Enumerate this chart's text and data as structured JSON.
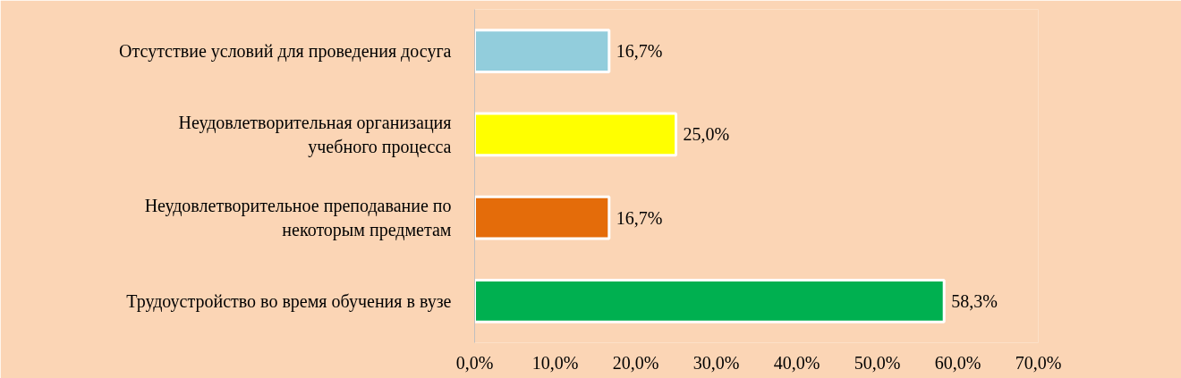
{
  "chart_data": {
    "type": "bar",
    "orientation": "horizontal",
    "categories": [
      "Отсутствие условий для проведения досуга",
      "Неудовлетворительная организация\nучебного процесса",
      "Неудовлетворительное преподавание по\nнекоторым предметам",
      "Трудоустройство во время обучения в вузе"
    ],
    "values": [
      16.7,
      25.0,
      16.7,
      58.3
    ],
    "colors": [
      "#92cddc",
      "#ffff00",
      "#e46c0a",
      "#00b050"
    ],
    "value_labels": [
      "16,7%",
      "25,0%",
      "16,7%",
      "58,3%"
    ],
    "xlim": [
      0,
      70
    ],
    "xticks": [
      {
        "value": 0,
        "label": "0,0%"
      },
      {
        "value": 10,
        "label": "10,0%"
      },
      {
        "value": 20,
        "label": "20,0%"
      },
      {
        "value": 30,
        "label": "30,0%"
      },
      {
        "value": 40,
        "label": "40,0%"
      },
      {
        "value": 50,
        "label": "50,0%"
      },
      {
        "value": 60,
        "label": "60,0%"
      },
      {
        "value": 70,
        "label": "70,0%"
      }
    ],
    "grid": false
  }
}
